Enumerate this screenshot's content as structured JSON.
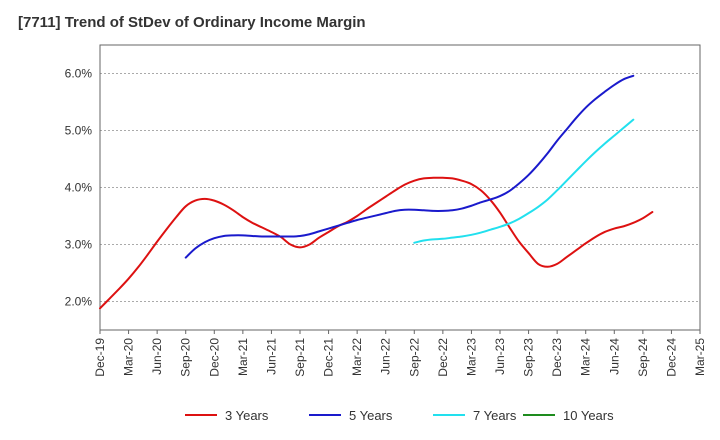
{
  "chart_data": {
    "type": "line",
    "title": "[7711]  Trend of StDev of Ordinary Income Margin",
    "xlabel": "",
    "ylabel": "",
    "ylim": [
      1.5,
      6.5
    ],
    "y_ticks": [
      2.0,
      3.0,
      4.0,
      5.0,
      6.0
    ],
    "y_tick_labels": [
      "2.0%",
      "3.0%",
      "4.0%",
      "5.0%",
      "6.0%"
    ],
    "x_ticks": [
      "Dec-19",
      "Mar-20",
      "Jun-20",
      "Sep-20",
      "Dec-20",
      "Mar-21",
      "Jun-21",
      "Sep-21",
      "Dec-21",
      "Mar-22",
      "Jun-22",
      "Sep-22",
      "Dec-22",
      "Mar-23",
      "Jun-23",
      "Sep-23",
      "Dec-23",
      "Mar-24",
      "Jun-24",
      "Sep-24",
      "Dec-24",
      "Mar-25"
    ],
    "grid": true,
    "legend_position": "bottom",
    "series": [
      {
        "name": "3 Years",
        "color": "#dd1111",
        "points": [
          [
            "Dec-19",
            1.88
          ],
          [
            "Jan-20",
            2.05
          ],
          [
            "Feb-20",
            2.22
          ],
          [
            "Mar-20",
            2.4
          ],
          [
            "Apr-20",
            2.6
          ],
          [
            "May-20",
            2.82
          ],
          [
            "Jun-20",
            3.05
          ],
          [
            "Jul-20",
            3.27
          ],
          [
            "Aug-20",
            3.48
          ],
          [
            "Sep-20",
            3.67
          ],
          [
            "Oct-20",
            3.77
          ],
          [
            "Nov-20",
            3.8
          ],
          [
            "Dec-20",
            3.77
          ],
          [
            "Jan-21",
            3.7
          ],
          [
            "Feb-21",
            3.6
          ],
          [
            "Mar-21",
            3.48
          ],
          [
            "Apr-21",
            3.38
          ],
          [
            "May-21",
            3.3
          ],
          [
            "Jun-21",
            3.22
          ],
          [
            "Jul-21",
            3.13
          ],
          [
            "Aug-21",
            3.0
          ],
          [
            "Sep-21",
            2.95
          ],
          [
            "Oct-21",
            3.0
          ],
          [
            "Nov-21",
            3.12
          ],
          [
            "Dec-21",
            3.22
          ],
          [
            "Jan-22",
            3.32
          ],
          [
            "Feb-22",
            3.4
          ],
          [
            "Mar-22",
            3.5
          ],
          [
            "Apr-22",
            3.62
          ],
          [
            "May-22",
            3.73
          ],
          [
            "Jun-22",
            3.84
          ],
          [
            "Jul-22",
            3.95
          ],
          [
            "Aug-22",
            4.05
          ],
          [
            "Sep-22",
            4.12
          ],
          [
            "Oct-22",
            4.16
          ],
          [
            "Nov-22",
            4.17
          ],
          [
            "Dec-22",
            4.17
          ],
          [
            "Jan-23",
            4.16
          ],
          [
            "Feb-23",
            4.12
          ],
          [
            "Mar-23",
            4.06
          ],
          [
            "Apr-23",
            3.95
          ],
          [
            "May-23",
            3.78
          ],
          [
            "Jun-23",
            3.56
          ],
          [
            "Jul-23",
            3.3
          ],
          [
            "Aug-23",
            3.05
          ],
          [
            "Sep-23",
            2.85
          ],
          [
            "Oct-23",
            2.66
          ],
          [
            "Nov-23",
            2.61
          ],
          [
            "Dec-23",
            2.66
          ],
          [
            "Jan-24",
            2.78
          ],
          [
            "Feb-24",
            2.9
          ],
          [
            "Mar-24",
            3.02
          ],
          [
            "Apr-24",
            3.13
          ],
          [
            "May-24",
            3.22
          ],
          [
            "Jun-24",
            3.28
          ],
          [
            "Jul-24",
            3.32
          ],
          [
            "Aug-24",
            3.38
          ],
          [
            "Sep-24",
            3.46
          ],
          [
            "Oct-24",
            3.57
          ]
        ]
      },
      {
        "name": "5 Years",
        "color": "#1a1acc",
        "points": [
          [
            "Sep-20",
            2.77
          ],
          [
            "Oct-20",
            2.93
          ],
          [
            "Nov-20",
            3.04
          ],
          [
            "Dec-20",
            3.11
          ],
          [
            "Jan-21",
            3.15
          ],
          [
            "Feb-21",
            3.16
          ],
          [
            "Mar-21",
            3.16
          ],
          [
            "Apr-21",
            3.15
          ],
          [
            "May-21",
            3.14
          ],
          [
            "Jun-21",
            3.14
          ],
          [
            "Jul-21",
            3.14
          ],
          [
            "Aug-21",
            3.14
          ],
          [
            "Sep-21",
            3.15
          ],
          [
            "Oct-21",
            3.18
          ],
          [
            "Nov-21",
            3.23
          ],
          [
            "Dec-21",
            3.28
          ],
          [
            "Jan-22",
            3.33
          ],
          [
            "Feb-22",
            3.38
          ],
          [
            "Mar-22",
            3.43
          ],
          [
            "Apr-22",
            3.47
          ],
          [
            "May-22",
            3.51
          ],
          [
            "Jun-22",
            3.55
          ],
          [
            "Jul-22",
            3.59
          ],
          [
            "Aug-22",
            3.61
          ],
          [
            "Sep-22",
            3.61
          ],
          [
            "Oct-22",
            3.6
          ],
          [
            "Nov-22",
            3.59
          ],
          [
            "Dec-22",
            3.59
          ],
          [
            "Jan-23",
            3.6
          ],
          [
            "Feb-23",
            3.63
          ],
          [
            "Mar-23",
            3.68
          ],
          [
            "Apr-23",
            3.74
          ],
          [
            "May-23",
            3.79
          ],
          [
            "Jun-23",
            3.85
          ],
          [
            "Jul-23",
            3.94
          ],
          [
            "Aug-23",
            4.07
          ],
          [
            "Sep-23",
            4.22
          ],
          [
            "Oct-23",
            4.4
          ],
          [
            "Nov-23",
            4.6
          ],
          [
            "Dec-23",
            4.82
          ],
          [
            "Jan-24",
            5.02
          ],
          [
            "Feb-24",
            5.22
          ],
          [
            "Mar-24",
            5.4
          ],
          [
            "Apr-24",
            5.55
          ],
          [
            "May-24",
            5.68
          ],
          [
            "Jun-24",
            5.8
          ],
          [
            "Jul-24",
            5.9
          ],
          [
            "Aug-24",
            5.96
          ]
        ]
      },
      {
        "name": "7 Years",
        "color": "#22e0ee",
        "points": [
          [
            "Sep-22",
            3.03
          ],
          [
            "Oct-22",
            3.07
          ],
          [
            "Nov-22",
            3.09
          ],
          [
            "Dec-22",
            3.1
          ],
          [
            "Jan-23",
            3.12
          ],
          [
            "Feb-23",
            3.14
          ],
          [
            "Mar-23",
            3.17
          ],
          [
            "Apr-23",
            3.21
          ],
          [
            "May-23",
            3.26
          ],
          [
            "Jun-23",
            3.31
          ],
          [
            "Jul-23",
            3.37
          ],
          [
            "Aug-23",
            3.45
          ],
          [
            "Sep-23",
            3.55
          ],
          [
            "Oct-23",
            3.66
          ],
          [
            "Nov-23",
            3.79
          ],
          [
            "Dec-23",
            3.95
          ],
          [
            "Jan-24",
            4.12
          ],
          [
            "Feb-24",
            4.29
          ],
          [
            "Mar-24",
            4.46
          ],
          [
            "Apr-24",
            4.62
          ],
          [
            "May-24",
            4.77
          ],
          [
            "Jun-24",
            4.91
          ],
          [
            "Jul-24",
            5.05
          ],
          [
            "Aug-24",
            5.19
          ]
        ]
      },
      {
        "name": "10 Years",
        "color": "#1e8c1e",
        "points": []
      }
    ]
  }
}
